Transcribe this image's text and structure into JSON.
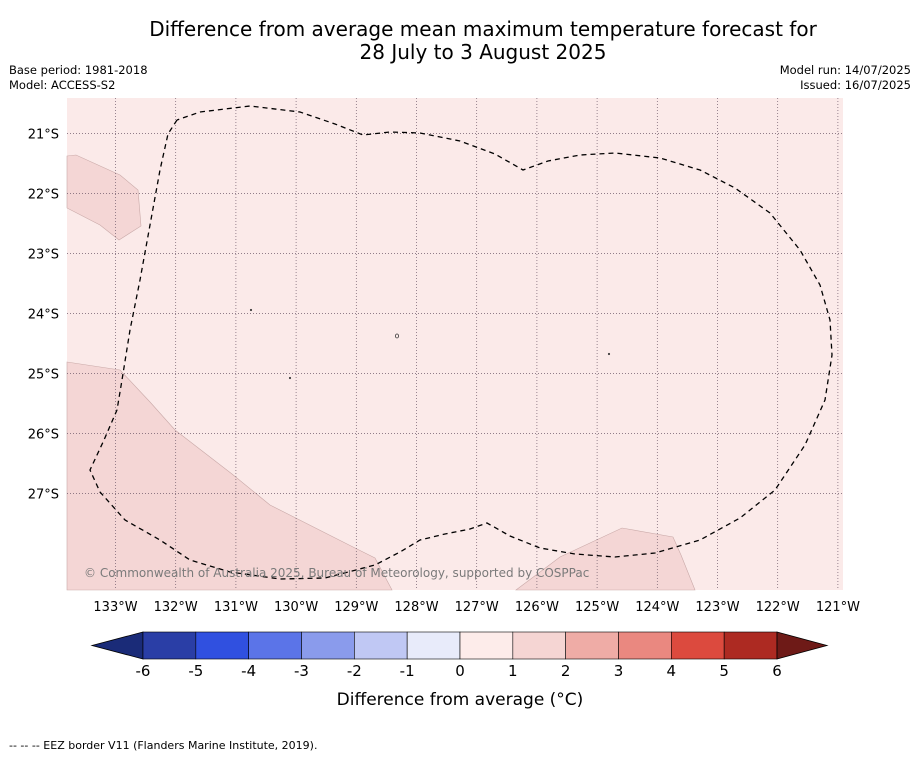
{
  "title": {
    "line1": "Difference from average mean maximum temperature forecast for",
    "line2": "28 July to 3 August 2025"
  },
  "meta": {
    "base_period": "Base period: 1981-2018",
    "model": "Model: ACCESS-S2",
    "model_run": "Model run: 14/07/2025",
    "issued": "Issued: 16/07/2025"
  },
  "map": {
    "copyright": "© Commonwealth of Australia 2025, Bureau of Meteorology, supported by COSPPac",
    "background_color": "#fbeae9",
    "anomaly_1_2_color": "#f4d6d5",
    "lon_labels": [
      "133°W",
      "132°W",
      "131°W",
      "130°W",
      "129°W",
      "128°W",
      "127°W",
      "126°W",
      "125°W",
      "124°W",
      "123°W",
      "122°W",
      "121°W"
    ],
    "lat_labels": [
      "21°S",
      "22°S",
      "23°S",
      "24°S",
      "25°S",
      "26°S",
      "27°S"
    ]
  },
  "legend": {
    "title": "Difference from average (°C)",
    "ticks": [
      "-6",
      "-5",
      "-4",
      "-3",
      "-2",
      "-1",
      "0",
      "1",
      "2",
      "3",
      "4",
      "5",
      "6"
    ],
    "colors": [
      "#2a3ea6",
      "#3050e0",
      "#5b74e8",
      "#8a9bec",
      "#c0c8f4",
      "#e8ebfa",
      "#fdecea",
      "#f5d5d3",
      "#efaca6",
      "#ea8880",
      "#dc4a3e",
      "#ad2a22"
    ],
    "under_color": "#1a2b78",
    "over_color": "#6e1a17"
  },
  "footnote": "-- -- -- EEZ border V11 (Flanders Marine Institute, 2019)."
}
